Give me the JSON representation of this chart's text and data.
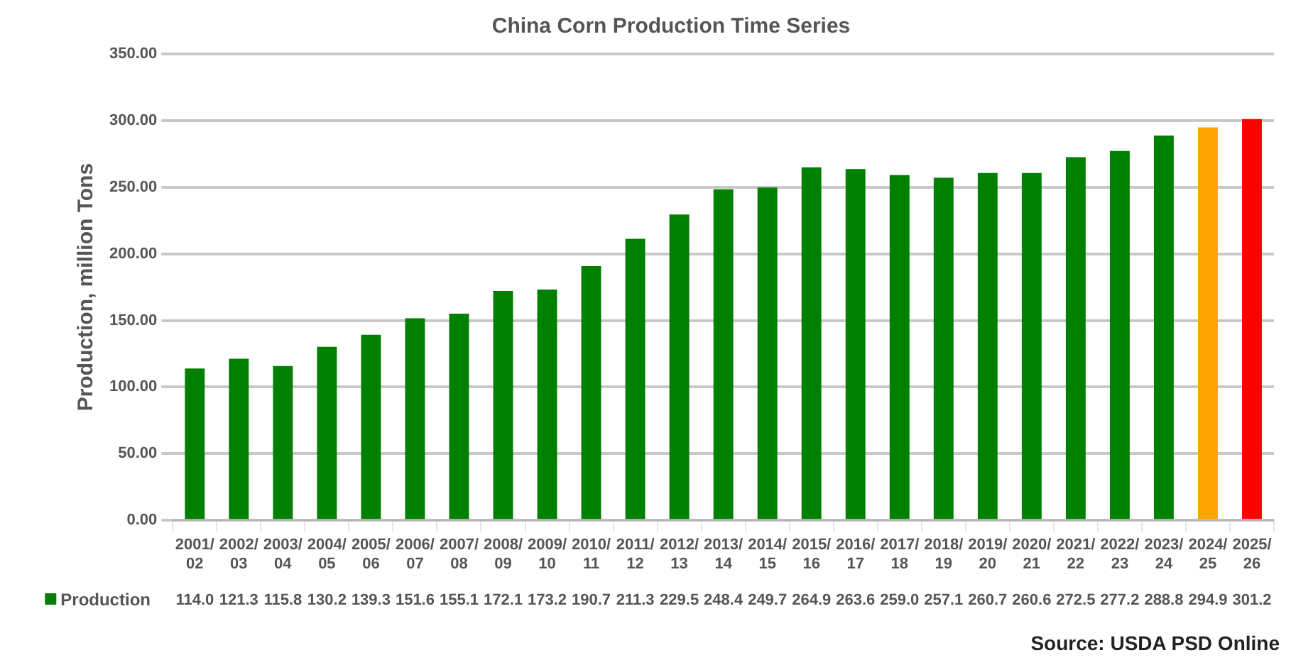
{
  "chart_data": {
    "type": "bar",
    "title": "China Corn Production Time Series",
    "ylabel": "Production, million Tons",
    "categories": [
      "2001/02",
      "2002/03",
      "2003/04",
      "2004/05",
      "2005/06",
      "2006/07",
      "2007/08",
      "2008/09",
      "2009/10",
      "2010/11",
      "2011/12",
      "2012/13",
      "2013/14",
      "2014/15",
      "2015/16",
      "2016/17",
      "2017/18",
      "2018/19",
      "2019/20",
      "2020/21",
      "2021/22",
      "2022/23",
      "2023/24",
      "2024/25",
      "2025/26"
    ],
    "series": [
      {
        "name": "Production",
        "color": "#008000",
        "colors": [
          "#008000",
          "#008000",
          "#008000",
          "#008000",
          "#008000",
          "#008000",
          "#008000",
          "#008000",
          "#008000",
          "#008000",
          "#008000",
          "#008000",
          "#008000",
          "#008000",
          "#008000",
          "#008000",
          "#008000",
          "#008000",
          "#008000",
          "#008000",
          "#008000",
          "#008000",
          "#008000",
          "#ffa500",
          "#ff0000"
        ],
        "values": [
          114.0,
          121.3,
          115.8,
          130.2,
          139.3,
          151.6,
          155.1,
          172.1,
          173.2,
          190.7,
          211.3,
          229.5,
          248.4,
          249.7,
          264.9,
          263.6,
          259.0,
          257.1,
          260.7,
          260.6,
          272.5,
          277.2,
          288.8,
          294.9,
          301.2
        ],
        "value_labels": [
          "114.0",
          "121.3",
          "115.8",
          "130.2",
          "139.3",
          "151.6",
          "155.1",
          "172.1",
          "173.2",
          "190.7",
          "211.3",
          "229.5",
          "248.4",
          "249.7",
          "264.9",
          "263.6",
          "259.0",
          "257.1",
          "260.7",
          "260.6",
          "272.5",
          "277.2",
          "288.8",
          "294.9",
          "301.2"
        ]
      }
    ],
    "ylim": [
      0,
      350
    ],
    "yticks": [
      {
        "value": 0,
        "label": "0.00"
      },
      {
        "value": 50,
        "label": "50.00"
      },
      {
        "value": 100,
        "label": "100.00"
      },
      {
        "value": 150,
        "label": "150.00"
      },
      {
        "value": 200,
        "label": "200.00"
      },
      {
        "value": 250,
        "label": "250.00"
      },
      {
        "value": 300,
        "label": "300.00"
      },
      {
        "value": 350,
        "label": "350.00"
      }
    ],
    "grid": true,
    "legend": "bottom",
    "annotations": [
      "Source: USDA PSD Online"
    ]
  }
}
